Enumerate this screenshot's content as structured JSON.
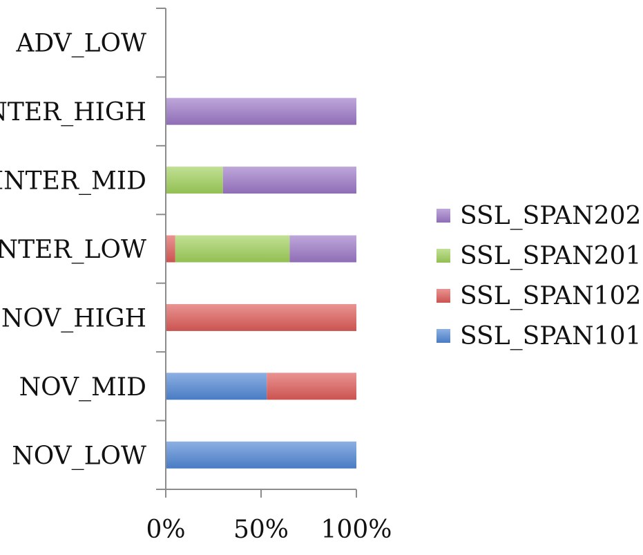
{
  "chart_data": {
    "type": "bar",
    "orientation": "horizontal",
    "stacking": "percent",
    "categories": [
      "NOV_LOW",
      "NOV_MID",
      "NOV_HIGH",
      "INTER_LOW",
      "INTER_MID",
      "INTER_HIGH",
      "ADV_LOW"
    ],
    "series": [
      {
        "name": "SSL_SPAN101",
        "color": "#4f86d4",
        "values": [
          100,
          53,
          0,
          0,
          0,
          0,
          0
        ]
      },
      {
        "name": "SSL_SPAN102",
        "color": "#dd5a57",
        "values": [
          0,
          47,
          100,
          5,
          0,
          0,
          0
        ]
      },
      {
        "name": "SSL_SPAN201",
        "color": "#9fd05a",
        "values": [
          0,
          0,
          0,
          60,
          30,
          0,
          0
        ]
      },
      {
        "name": "SSL_SPAN202",
        "color": "#9b77c6",
        "values": [
          0,
          0,
          0,
          35,
          70,
          100,
          0
        ]
      }
    ],
    "xticks": [
      "0%",
      "50%",
      "100%"
    ],
    "xlim": [
      0,
      100
    ],
    "title": "",
    "xlabel": "",
    "ylabel": "",
    "grid": false,
    "legend": {
      "position": "right",
      "order": [
        "SSL_SPAN202",
        "SSL_SPAN201",
        "SSL_SPAN102",
        "SSL_SPAN101"
      ]
    }
  }
}
